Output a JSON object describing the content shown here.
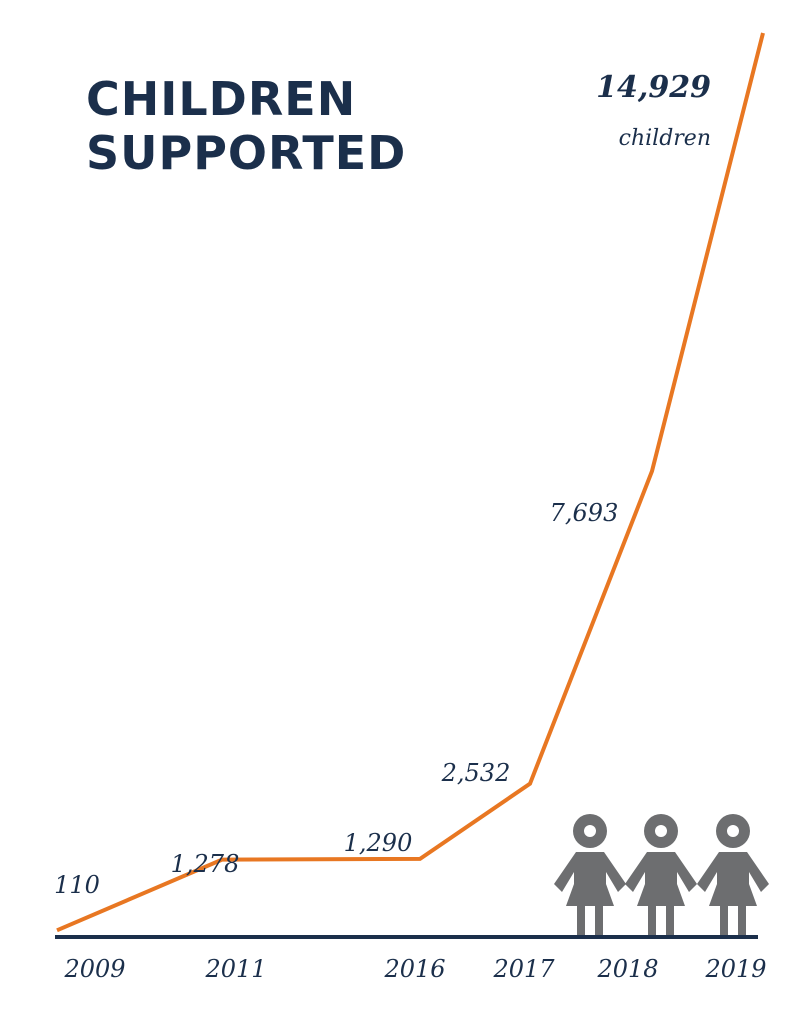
{
  "chart_data": {
    "type": "line",
    "title": "CHILDREN SUPPORTED",
    "categories": [
      "2009",
      "2011",
      "2016",
      "2017",
      "2018",
      "2019"
    ],
    "values": [
      110,
      1278,
      1290,
      2532,
      7693,
      14929
    ],
    "value_labels": [
      "110",
      "1,278",
      "1,290",
      "2,532",
      "7,693",
      "14,929"
    ],
    "annotation": "children",
    "color": "#e87722"
  }
}
